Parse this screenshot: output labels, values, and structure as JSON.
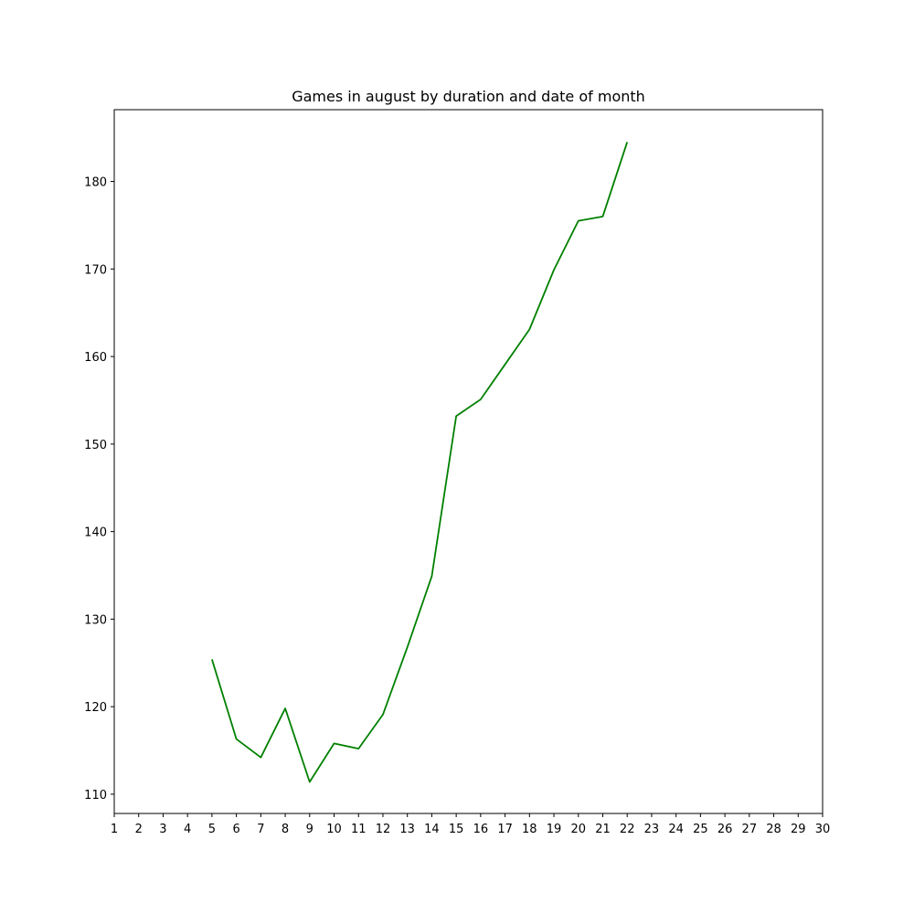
{
  "chart_data": {
    "type": "line",
    "title": "Games in august by duration and date of month",
    "xlabel": "",
    "ylabel": "",
    "xlim": [
      1,
      30
    ],
    "ylim": [
      107.8,
      188.2
    ],
    "x_ticks": [
      1,
      2,
      3,
      4,
      5,
      6,
      7,
      8,
      9,
      10,
      11,
      12,
      13,
      14,
      15,
      16,
      17,
      18,
      19,
      20,
      21,
      22,
      23,
      24,
      25,
      26,
      27,
      28,
      29,
      30
    ],
    "y_ticks": [
      110,
      120,
      130,
      140,
      150,
      160,
      170,
      180
    ],
    "grid": false,
    "legend": "none",
    "series": [
      {
        "color": "#008000",
        "x": [
          5,
          6,
          7,
          8,
          9,
          10,
          11,
          12,
          13,
          14,
          15,
          16,
          17,
          18,
          19,
          20,
          21,
          22
        ],
        "y": [
          125.4,
          116.3,
          114.2,
          119.8,
          111.4,
          115.8,
          115.2,
          119.1,
          126.8,
          134.9,
          153.2,
          155.1,
          159.1,
          163.1,
          169.9,
          175.5,
          176.0,
          184.5
        ]
      }
    ]
  }
}
